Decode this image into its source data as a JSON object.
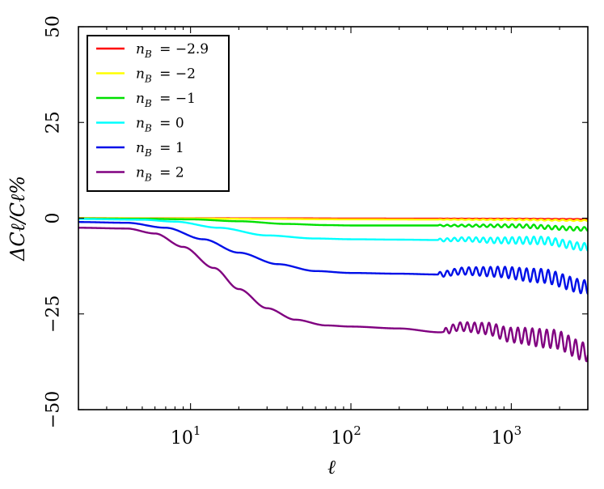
{
  "chart_data": {
    "type": "line",
    "title": "",
    "xlabel": "ℓ",
    "ylabel": "ΔCℓ/Cℓ%",
    "xscale": "log",
    "xlim": [
      2,
      3000
    ],
    "ylim": [
      -50,
      50
    ],
    "grid": false,
    "legend_position": "top-left",
    "yticks": [
      {
        "value": -50,
        "label": "−50"
      },
      {
        "value": -25,
        "label": "−25"
      },
      {
        "value": 0,
        "label": "0"
      },
      {
        "value": 25,
        "label": "25"
      },
      {
        "value": 50,
        "label": "50"
      }
    ],
    "xticks": [
      {
        "value": 10,
        "base": "10",
        "exp": "1"
      },
      {
        "value": 100,
        "base": "10",
        "exp": "2"
      },
      {
        "value": 1000,
        "base": "10",
        "exp": "3"
      }
    ],
    "series": [
      {
        "name": "n_B = −2.9",
        "sub_var": "n",
        "sub": "B",
        "eq": "= −2.9",
        "color": "#ff0000",
        "points": [
          [
            2,
            0.0
          ],
          [
            10,
            -0.02
          ],
          [
            50,
            -0.05
          ],
          [
            100,
            -0.1
          ],
          [
            300,
            -0.12
          ],
          [
            1000,
            -0.15
          ],
          [
            3000,
            -0.25
          ]
        ],
        "wiggle": [
          {
            "from": 350,
            "amp": 0.05,
            "period": 0.045
          }
        ]
      },
      {
        "name": "n_B = −2",
        "sub_var": "n",
        "sub": "B",
        "eq": "= −2",
        "color": "#ffff00",
        "points": [
          [
            2,
            0.0
          ],
          [
            10,
            -0.08
          ],
          [
            30,
            -0.2
          ],
          [
            100,
            -0.3
          ],
          [
            300,
            -0.35
          ],
          [
            1000,
            -0.4
          ],
          [
            3000,
            -0.6
          ]
        ],
        "wiggle": [
          {
            "from": 350,
            "amp": 0.15,
            "period": 0.045
          }
        ]
      },
      {
        "name": "n_B = −1",
        "sub_var": "n",
        "sub": "B",
        "eq": "= −1",
        "color": "#00e000",
        "points": [
          [
            2,
            -0.1
          ],
          [
            5,
            -0.15
          ],
          [
            10,
            -0.3
          ],
          [
            20,
            -0.8
          ],
          [
            40,
            -1.5
          ],
          [
            70,
            -1.8
          ],
          [
            100,
            -1.9
          ],
          [
            300,
            -1.9
          ],
          [
            1000,
            -2.0
          ],
          [
            3000,
            -2.8
          ]
        ],
        "wiggle": [
          {
            "from": 350,
            "amp": 0.5,
            "period": 0.045
          }
        ]
      },
      {
        "name": "n_B = 0",
        "sub_var": "n",
        "sub": "B",
        "eq": "= 0",
        "color": "#00ffff",
        "points": [
          [
            2,
            -0.2
          ],
          [
            5,
            -0.4
          ],
          [
            8,
            -0.9
          ],
          [
            15,
            -2.5
          ],
          [
            30,
            -4.5
          ],
          [
            60,
            -5.3
          ],
          [
            100,
            -5.5
          ],
          [
            200,
            -5.6
          ],
          [
            350,
            -5.7
          ],
          [
            500,
            -5.5
          ],
          [
            800,
            -5.8
          ],
          [
            1500,
            -5.8
          ],
          [
            3000,
            -7.5
          ]
        ],
        "wiggle": [
          {
            "from": 350,
            "amp": 1.0,
            "period": 0.045
          }
        ]
      },
      {
        "name": "n_B = 1",
        "sub_var": "n",
        "sub": "B",
        "eq": "= 1",
        "color": "#0010e8",
        "points": [
          [
            2,
            -1.0
          ],
          [
            4,
            -1.2
          ],
          [
            7,
            -2.5
          ],
          [
            12,
            -5.5
          ],
          [
            20,
            -9.0
          ],
          [
            35,
            -12.0
          ],
          [
            60,
            -13.8
          ],
          [
            100,
            -14.3
          ],
          [
            200,
            -14.5
          ],
          [
            350,
            -14.7
          ],
          [
            500,
            -13.8
          ],
          [
            800,
            -14.0
          ],
          [
            1500,
            -15.0
          ],
          [
            3000,
            -18.0
          ]
        ],
        "wiggle": [
          {
            "from": 350,
            "amp": 1.8,
            "period": 0.045
          }
        ]
      },
      {
        "name": "n_B = 2",
        "sub_var": "n",
        "sub": "B",
        "eq": "= 2",
        "color": "#800080",
        "points": [
          [
            2,
            -2.5
          ],
          [
            4,
            -2.7
          ],
          [
            6,
            -4.0
          ],
          [
            9,
            -7.5
          ],
          [
            14,
            -13.0
          ],
          [
            20,
            -18.5
          ],
          [
            30,
            -23.5
          ],
          [
            45,
            -26.5
          ],
          [
            70,
            -28.0
          ],
          [
            100,
            -28.3
          ],
          [
            200,
            -28.8
          ],
          [
            360,
            -29.8
          ],
          [
            480,
            -28.3
          ],
          [
            700,
            -28.8
          ],
          [
            1000,
            -30.5
          ],
          [
            1800,
            -31.5
          ],
          [
            3000,
            -35.0
          ]
        ],
        "wiggle": [
          {
            "from": 380,
            "amp": 2.4,
            "period": 0.045
          }
        ]
      }
    ]
  }
}
